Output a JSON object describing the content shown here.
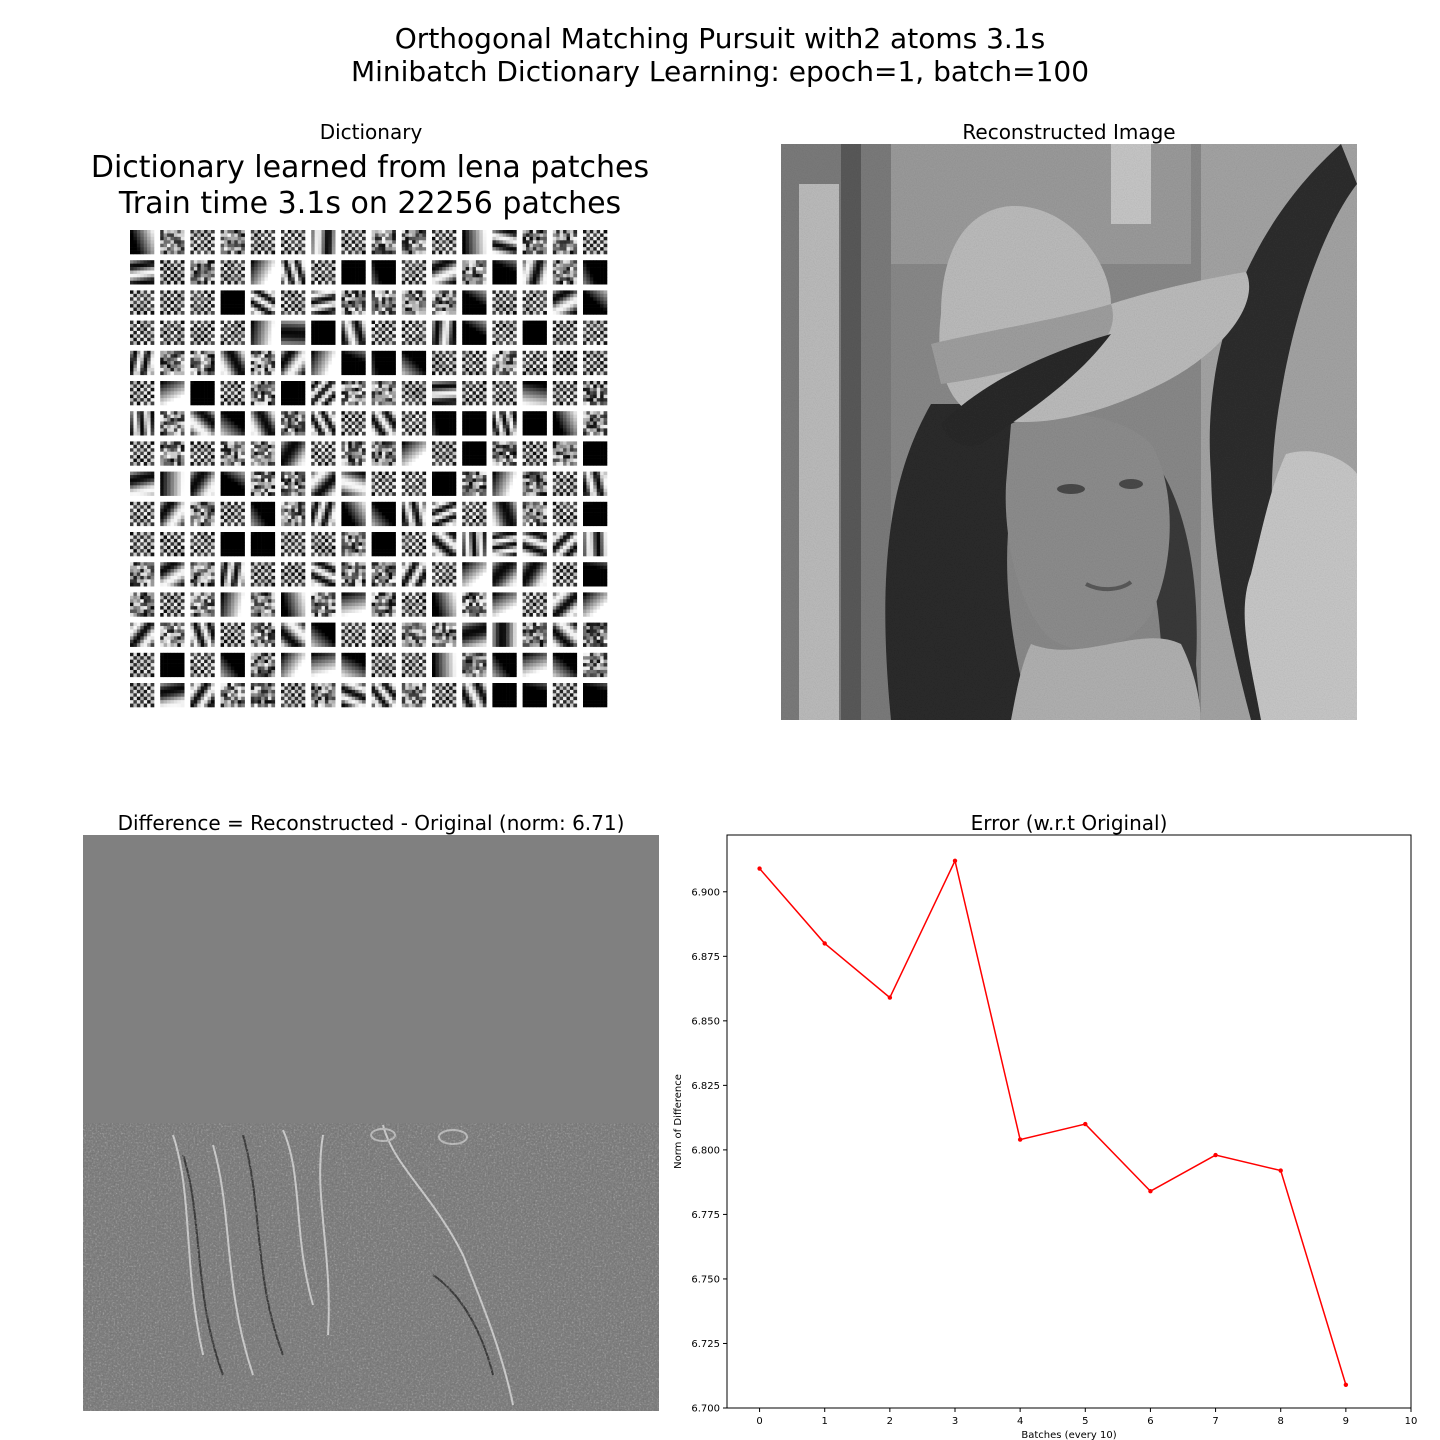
{
  "suptitle": {
    "line1": "Orthogonal Matching Pursuit with2 atoms 3.1s",
    "line2": "Minibatch Dictionary Learning: epoch=1, batch=100"
  },
  "dictionary_panel": {
    "title": "Dictionary",
    "inner_title_line1": "Dictionary learned from lena patches",
    "inner_title_line2": "Train time 3.1s on 22256 patches",
    "grid_rows": 16,
    "grid_cols": 16
  },
  "reconstructed_panel": {
    "title": "Reconstructed Image"
  },
  "difference_panel": {
    "title": "Difference = Reconstructed - Original (norm: 6.71)"
  },
  "chart_data": {
    "type": "line",
    "title": "Error (w.r.t Original)",
    "xlabel": "Batches (every 10)",
    "ylabel": "Norm of Difference",
    "x": [
      0,
      1,
      2,
      3,
      4,
      5,
      6,
      7,
      8,
      9
    ],
    "series": [
      {
        "color": "#ff0000",
        "values": [
          6.909,
          6.88,
          6.859,
          6.912,
          6.804,
          6.81,
          6.784,
          6.798,
          6.792,
          6.709
        ]
      }
    ],
    "xlim": [
      -0.5,
      10
    ],
    "ylim": [
      6.7,
      6.922
    ],
    "xticks": [
      "0",
      "1",
      "2",
      "3",
      "4",
      "5",
      "6",
      "7",
      "8",
      "9",
      "10"
    ],
    "yticks": [
      "6.700",
      "6.725",
      "6.750",
      "6.775",
      "6.800",
      "6.825",
      "6.850",
      "6.875",
      "6.900"
    ],
    "grid": false,
    "marker": "point"
  }
}
